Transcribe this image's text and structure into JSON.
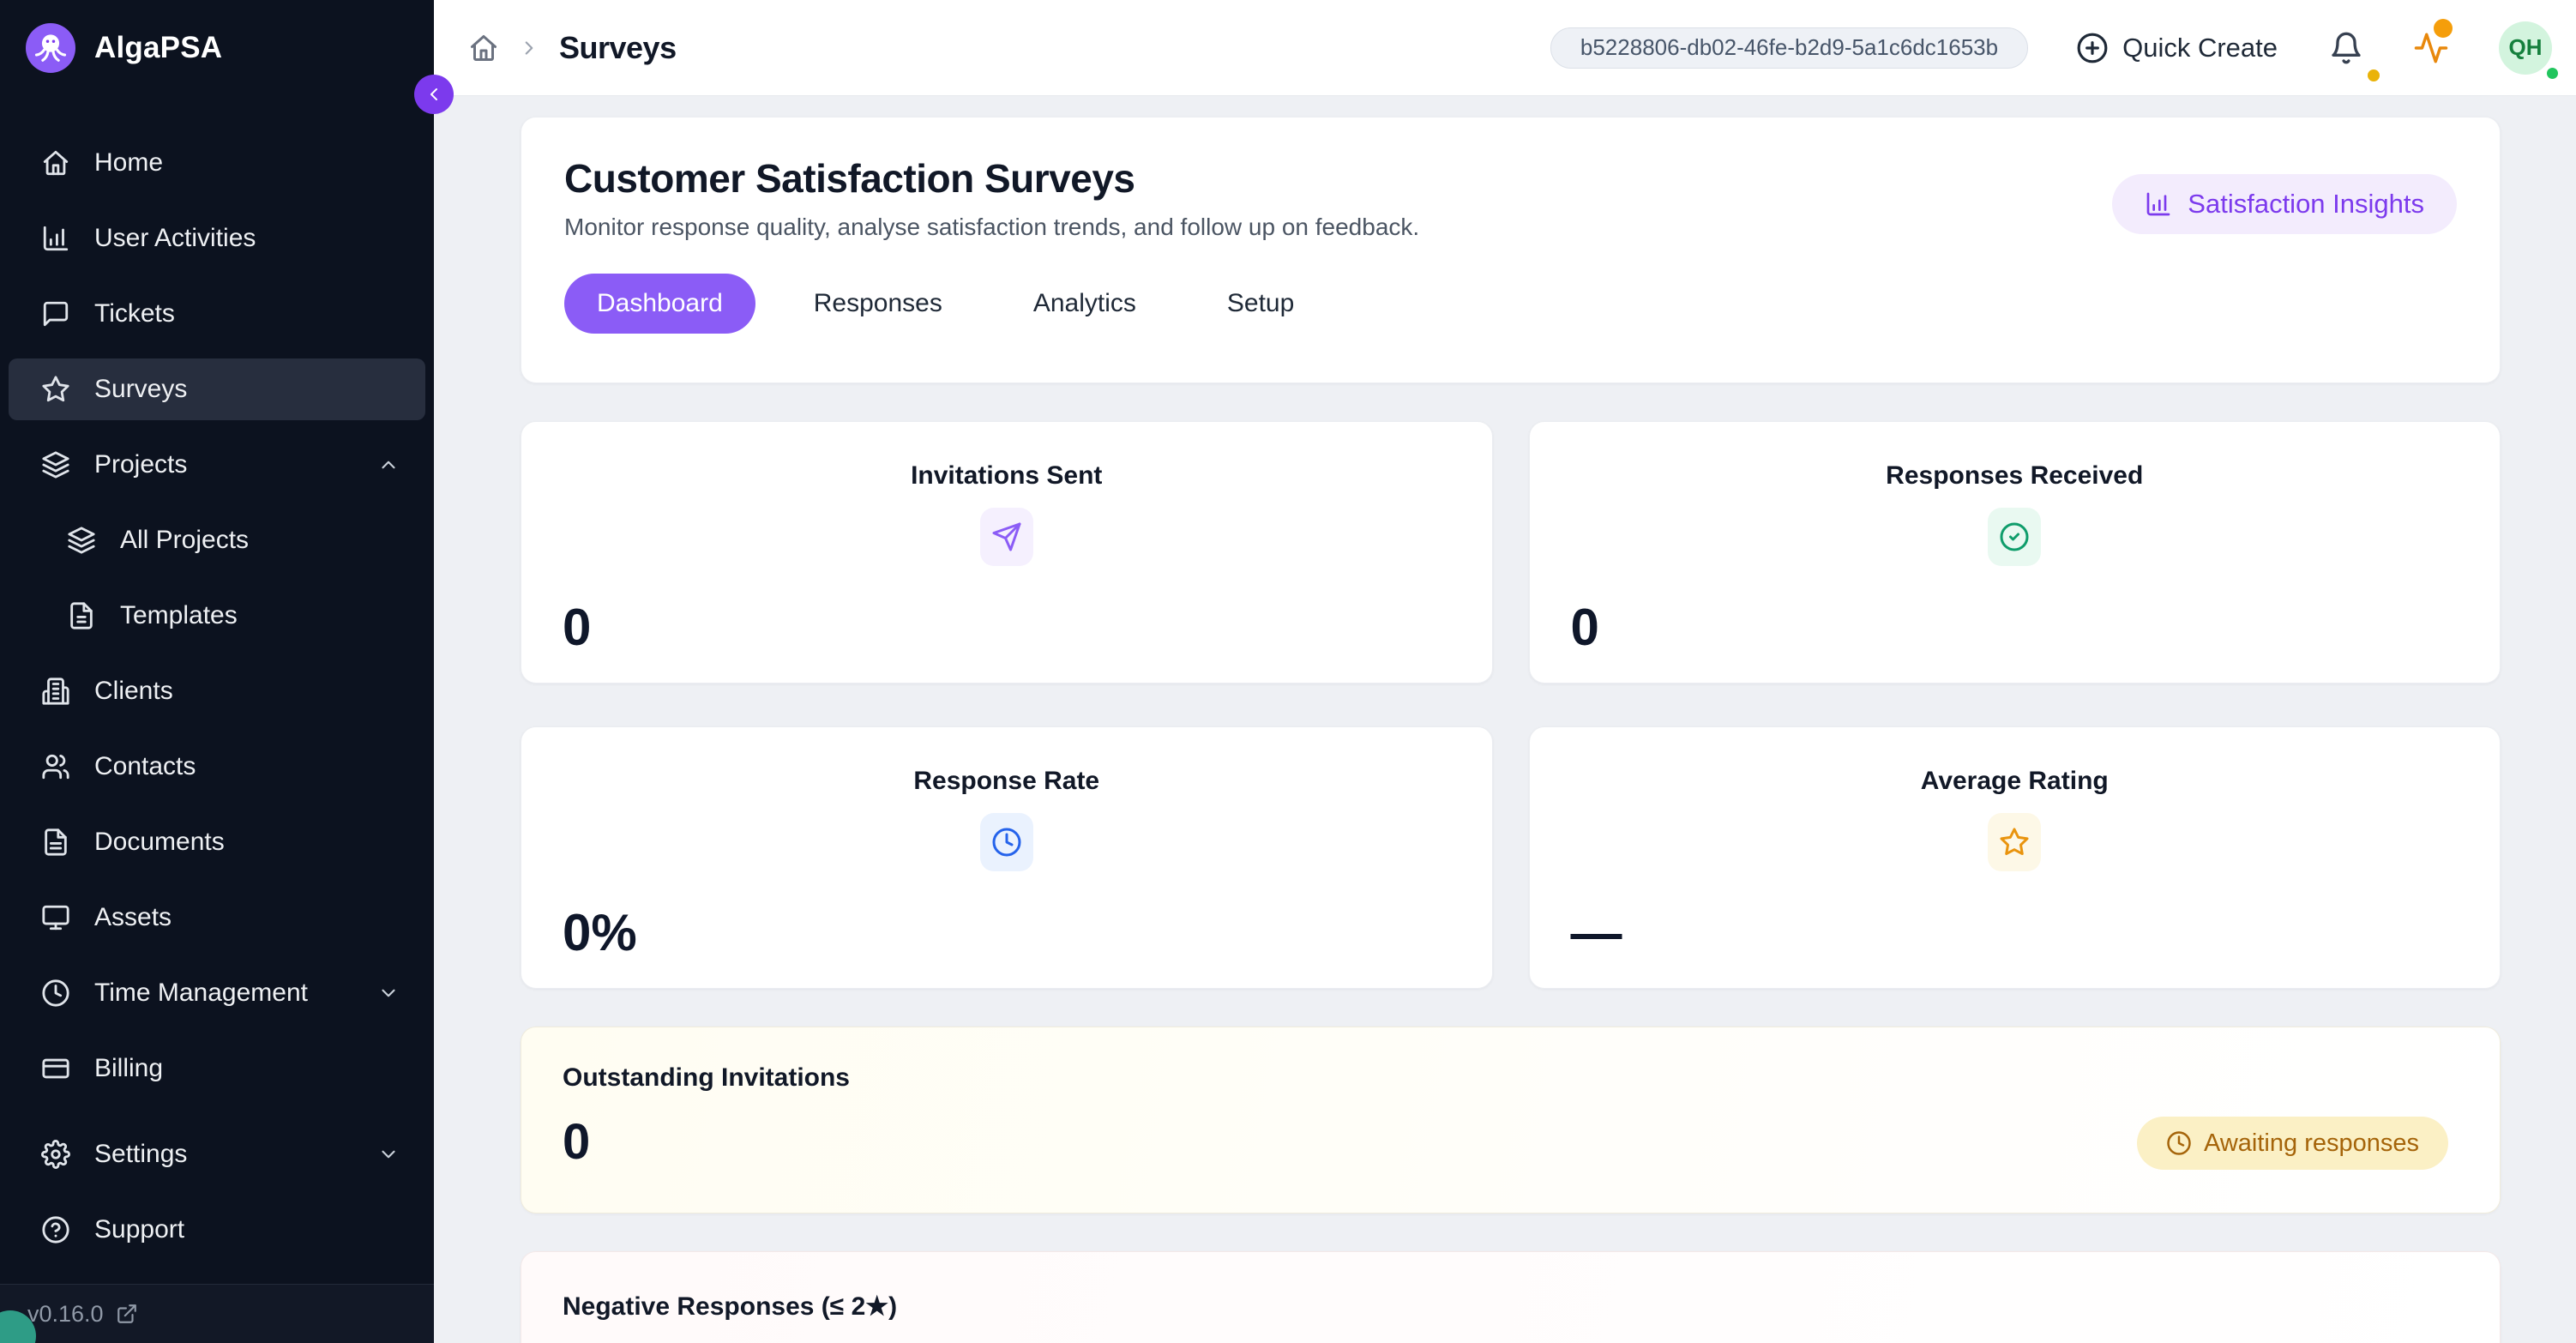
{
  "app": {
    "name": "AlgaPSA",
    "version": "v0.16.0"
  },
  "colors": {
    "accent_purple": "#7c3aed",
    "tab_active_purple": "#8b5cf6",
    "sidebar_bg": "#0c121f",
    "badge_amber_bg": "#fbf0c5",
    "badge_amber_text": "#a5640a",
    "status_green": "#22c55e",
    "notification_orange": "#f59e0b"
  },
  "sidebar": {
    "items": [
      {
        "label": "Home",
        "icon": "home"
      },
      {
        "label": "User Activities",
        "icon": "chart-column"
      },
      {
        "label": "Tickets",
        "icon": "message-square"
      },
      {
        "label": "Surveys",
        "icon": "star",
        "active": true
      },
      {
        "label": "Projects",
        "icon": "layers",
        "chevron": "up"
      },
      {
        "label": "All Projects",
        "icon": "layers",
        "indent": true
      },
      {
        "label": "Templates",
        "icon": "file",
        "indent": true
      },
      {
        "label": "Clients",
        "icon": "building"
      },
      {
        "label": "Contacts",
        "icon": "users"
      },
      {
        "label": "Documents",
        "icon": "file-text"
      },
      {
        "label": "Assets",
        "icon": "monitor"
      },
      {
        "label": "Time Management",
        "icon": "clock",
        "chevron": "down"
      },
      {
        "label": "Billing",
        "icon": "credit-card"
      },
      {
        "label": "Settings",
        "icon": "settings",
        "chevron": "down",
        "gap_above": true
      },
      {
        "label": "Support",
        "icon": "help-circle"
      }
    ]
  },
  "header": {
    "breadcrumb_current": "Surveys",
    "session_id": "b5228806-db02-46fe-b2d9-5a1c6dc1653b",
    "quick_create_label": "Quick Create",
    "avatar_initials": "QH"
  },
  "page": {
    "title": "Customer Satisfaction Surveys",
    "subtitle": "Monitor response quality, analyse satisfaction trends, and follow up on feedback.",
    "tabs": [
      "Dashboard",
      "Responses",
      "Analytics",
      "Setup"
    ],
    "active_tab": "Dashboard",
    "insights_button": "Satisfaction Insights"
  },
  "stats": [
    {
      "title": "Invitations Sent",
      "value": "0",
      "icon": "send",
      "icon_color": "#8b5cf6",
      "icon_bg": "#f5f0fe"
    },
    {
      "title": "Responses Received",
      "value": "0",
      "icon": "check-circle",
      "icon_color": "#0f9d6b",
      "icon_bg": "#e9f9f1"
    },
    {
      "title": "Response Rate",
      "value": "0%",
      "icon": "clock",
      "icon_color": "#2563eb",
      "icon_bg": "#eaf2fe"
    },
    {
      "title": "Average Rating",
      "value": "—",
      "icon": "star",
      "icon_color": "#e9940e",
      "icon_bg": "#fdf8e7"
    }
  ],
  "sections": {
    "outstanding": {
      "title": "Outstanding Invitations",
      "value": "0",
      "badge": "Awaiting responses"
    },
    "negative": {
      "title": "Negative Responses (≤ 2★)"
    }
  }
}
